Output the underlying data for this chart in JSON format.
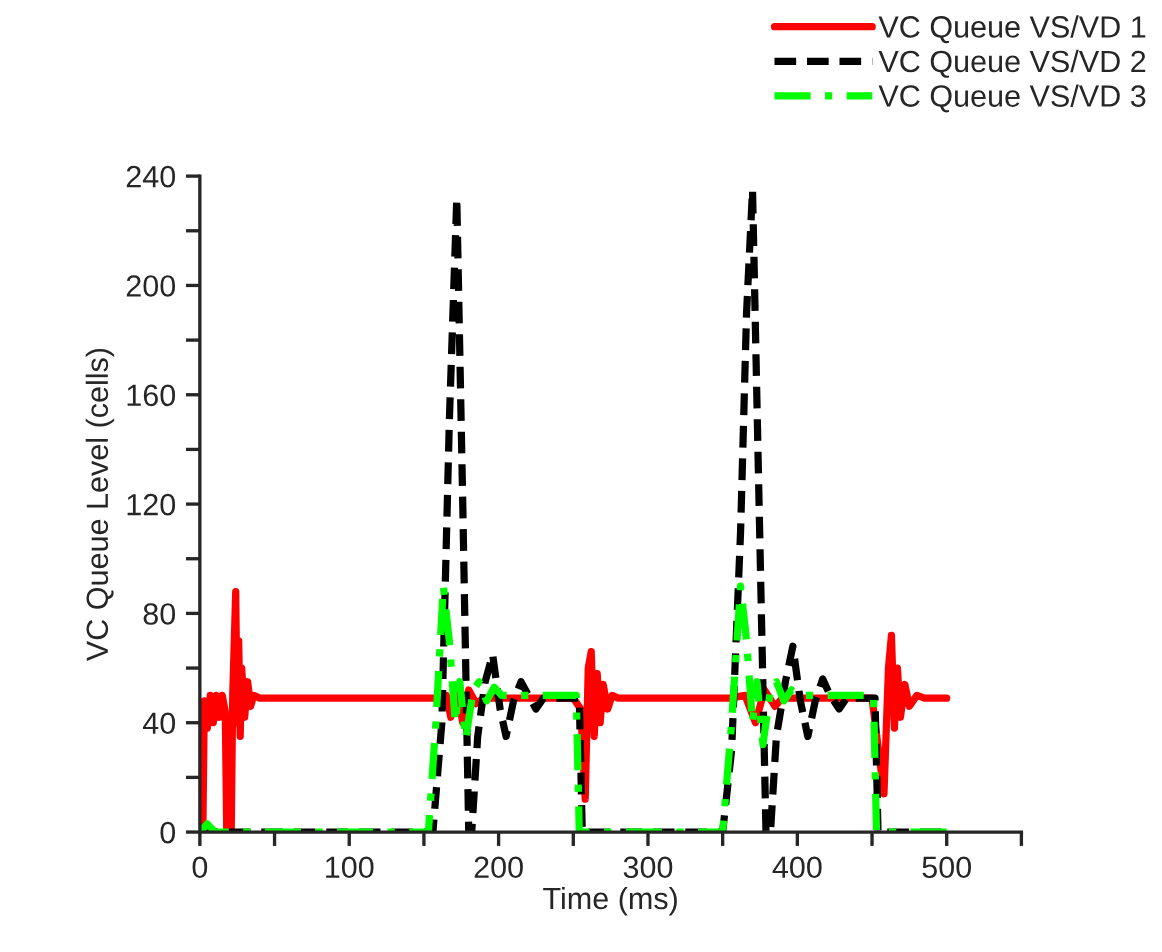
{
  "chart_data": {
    "type": "line",
    "xlabel": "Time (ms)",
    "ylabel": "VC Queue Level (cells)",
    "xlim": [
      0,
      550
    ],
    "ylim": [
      0,
      240
    ],
    "xticks": [
      0,
      {
        "value": 50,
        "label": null
      },
      100,
      {
        "value": 150,
        "label": null
      },
      200,
      {
        "value": 250,
        "label": null
      },
      300,
      {
        "value": 350,
        "label": null
      },
      400,
      {
        "value": 450,
        "label": null
      },
      500,
      {
        "value": 550,
        "label": null
      }
    ],
    "yticks": [
      0,
      {
        "value": 20,
        "label": null
      },
      40,
      {
        "value": 60,
        "label": null
      },
      80,
      {
        "value": 100,
        "label": null
      },
      120,
      {
        "value": 140,
        "label": null
      },
      160,
      {
        "value": 180,
        "label": null
      },
      200,
      {
        "value": 220,
        "label": null
      },
      240
    ],
    "grid": false,
    "legend": "top right",
    "marker": "none",
    "series": [
      {
        "name": "VC Queue VS/VD 1",
        "color": "#ff0000",
        "line_style": "solid",
        "x": [
          0,
          2,
          3,
          5,
          7,
          9,
          11,
          13,
          15,
          17,
          18,
          21,
          22,
          24,
          25,
          26,
          27,
          28,
          30,
          32,
          34,
          36,
          40,
          160,
          165,
          168,
          172,
          176,
          180,
          185,
          190,
          250,
          255,
          258,
          260,
          262,
          264,
          266,
          268,
          270,
          273,
          276,
          280,
          355,
          365,
          372,
          378,
          385,
          390,
          450,
          458,
          461,
          463,
          465,
          467,
          469,
          472,
          475,
          480,
          485,
          500
        ],
        "values": [
          0,
          0,
          48,
          38,
          50,
          40,
          50,
          42,
          50,
          44,
          0,
          0,
          50,
          88,
          40,
          70,
          35,
          60,
          42,
          55,
          46,
          50,
          49,
          49,
          50,
          42,
          52,
          40,
          52,
          47,
          49,
          49,
          45,
          12,
          60,
          66,
          35,
          58,
          40,
          54,
          45,
          50,
          49,
          49,
          50,
          40,
          52,
          46,
          49,
          49,
          14,
          60,
          72,
          38,
          60,
          42,
          54,
          46,
          50,
          49,
          49
        ]
      },
      {
        "name": "VC Queue VS/VD 2",
        "color": "#000000",
        "line_style": "dashed",
        "x": [
          0,
          5,
          10,
          156,
          162,
          167,
          172,
          176,
          180,
          182,
          186,
          191,
          196,
          201,
          205,
          210,
          215,
          220,
          225,
          230,
          254,
          256,
          350,
          356,
          362,
          366,
          370,
          374,
          379,
          382,
          386,
          392,
          397,
          402,
          407,
          412,
          417,
          422,
          428,
          433,
          452,
          454,
          500
        ],
        "values": [
          0,
          2,
          0,
          0,
          40,
          150,
          232,
          120,
          0,
          0,
          35,
          55,
          65,
          45,
          35,
          48,
          55,
          50,
          45,
          49,
          49,
          0,
          0,
          30,
          110,
          190,
          235,
          130,
          0,
          0,
          35,
          55,
          68,
          48,
          35,
          48,
          56,
          50,
          45,
          49,
          49,
          0,
          0
        ]
      },
      {
        "name": "VC Queue VS/VD 3",
        "color": "#00ff00",
        "line_style": "dashdot",
        "x": [
          0,
          5,
          10,
          153,
          158,
          163,
          167,
          171,
          174,
          178,
          183,
          187,
          192,
          197,
          202,
          252,
          254,
          350,
          356,
          362,
          366,
          370,
          373,
          377,
          382,
          386,
          391,
          396,
          401,
          451,
          453,
          500
        ],
        "values": [
          0,
          3,
          0,
          0,
          40,
          90,
          70,
          40,
          55,
          34,
          52,
          55,
          48,
          53,
          50,
          50,
          0,
          0,
          40,
          90,
          70,
          40,
          55,
          32,
          52,
          55,
          48,
          52,
          50,
          50,
          0,
          0
        ]
      }
    ]
  }
}
